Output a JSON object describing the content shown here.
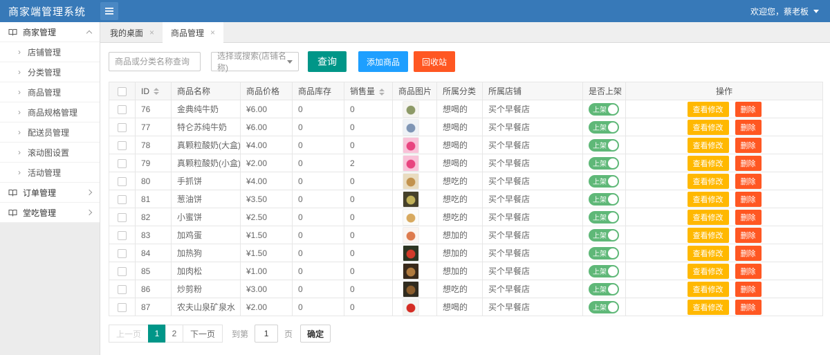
{
  "topbar": {
    "title": "商家端管理系统",
    "welcome": "欢迎您，蔡老板"
  },
  "sidebar": {
    "sections": [
      {
        "label": "商家管理",
        "expanded": true,
        "children": [
          "店铺管理",
          "分类管理",
          "商品管理",
          "商品规格管理",
          "配送员管理",
          "滚动图设置",
          "活动管理"
        ]
      },
      {
        "label": "订单管理",
        "expanded": false,
        "children": []
      },
      {
        "label": "堂吃管理",
        "expanded": false,
        "children": []
      }
    ]
  },
  "tabs": [
    {
      "label": "我的桌面",
      "active": false
    },
    {
      "label": "商品管理",
      "active": true
    }
  ],
  "toolbar": {
    "search_placeholder": "商品或分类名称查询",
    "select_placeholder": "选择或搜索(店铺名称)",
    "search_button": "查询",
    "add_button": "添加商品",
    "recycle_button": "回收站"
  },
  "table": {
    "columns": {
      "id": "ID",
      "name": "商品名称",
      "price": "商品价格",
      "stock": "商品库存",
      "sales": "销售量",
      "image": "商品图片",
      "category": "所属分类",
      "store": "所属店铺",
      "on_shelf": "是否上架",
      "actions": "操作"
    },
    "toggle_label": "上架",
    "view_button": "查看修改",
    "delete_button": "删除",
    "rows": [
      {
        "id": "76",
        "name": "金典纯牛奶",
        "price": "¥6.00",
        "stock": "0",
        "sales": "0",
        "category": "想喝的",
        "store": "买个早餐店",
        "thumb": [
          "#f6f5f1",
          "#8d9a67"
        ]
      },
      {
        "id": "77",
        "name": "特仑苏纯牛奶",
        "price": "¥6.00",
        "stock": "0",
        "sales": "0",
        "category": "想喝的",
        "store": "买个早餐店",
        "thumb": [
          "#eef2f6",
          "#7e95b5"
        ]
      },
      {
        "id": "78",
        "name": "真颗粒酸奶(大盒)",
        "price": "¥4.00",
        "stock": "0",
        "sales": "0",
        "category": "想喝的",
        "store": "买个早餐店",
        "thumb": [
          "#f9c2d8",
          "#e8447f"
        ]
      },
      {
        "id": "79",
        "name": "真颗粒酸奶(小盒)",
        "price": "¥2.00",
        "stock": "0",
        "sales": "2",
        "category": "想喝的",
        "store": "买个早餐店",
        "thumb": [
          "#f9c2d8",
          "#e8447f"
        ]
      },
      {
        "id": "80",
        "name": "手抓饼",
        "price": "¥4.00",
        "stock": "0",
        "sales": "0",
        "category": "想吃的",
        "store": "买个早餐店",
        "thumb": [
          "#e9dcc0",
          "#c2924d"
        ]
      },
      {
        "id": "81",
        "name": "葱油饼",
        "price": "¥3.50",
        "stock": "0",
        "sales": "0",
        "category": "想吃的",
        "store": "买个早餐店",
        "thumb": [
          "#45402a",
          "#c0b058"
        ]
      },
      {
        "id": "82",
        "name": "小蜜饼",
        "price": "¥2.50",
        "stock": "0",
        "sales": "0",
        "category": "想吃的",
        "store": "买个早餐店",
        "thumb": [
          "#fcfbf8",
          "#d8a95e"
        ]
      },
      {
        "id": "83",
        "name": "加鸡蛋",
        "price": "¥1.50",
        "stock": "0",
        "sales": "0",
        "category": "想加的",
        "store": "买个早餐店",
        "thumb": [
          "#fbf5f1",
          "#dd7a4d"
        ]
      },
      {
        "id": "84",
        "name": "加热狗",
        "price": "¥1.50",
        "stock": "0",
        "sales": "0",
        "category": "想加的",
        "store": "买个早餐店",
        "thumb": [
          "#2c3522",
          "#d23b2a"
        ]
      },
      {
        "id": "85",
        "name": "加肉松",
        "price": "¥1.00",
        "stock": "0",
        "sales": "0",
        "category": "想加的",
        "store": "买个早餐店",
        "thumb": [
          "#38291b",
          "#b07a3e"
        ]
      },
      {
        "id": "86",
        "name": "炒剪粉",
        "price": "¥3.00",
        "stock": "0",
        "sales": "0",
        "category": "想吃的",
        "store": "买个早餐店",
        "thumb": [
          "#302b1f",
          "#8a5c2c"
        ]
      },
      {
        "id": "87",
        "name": "农夫山泉矿泉水",
        "price": "¥2.00",
        "stock": "0",
        "sales": "0",
        "category": "想喝的",
        "store": "买个早餐店",
        "thumb": [
          "#f4f4f1",
          "#d42c23"
        ]
      }
    ]
  },
  "pagination": {
    "prev": "上一页",
    "pages": [
      "1",
      "2"
    ],
    "active": "1",
    "next": "下一页",
    "goto_label": "到第",
    "goto_value": "1",
    "page_unit": "页",
    "confirm": "确定"
  },
  "colors": {
    "topbar": "#3779b8",
    "teal": "#009688",
    "blue": "#1e9fff",
    "red": "#ff5722",
    "yellow": "#ffb800",
    "toggle_green": "#5fb878"
  }
}
